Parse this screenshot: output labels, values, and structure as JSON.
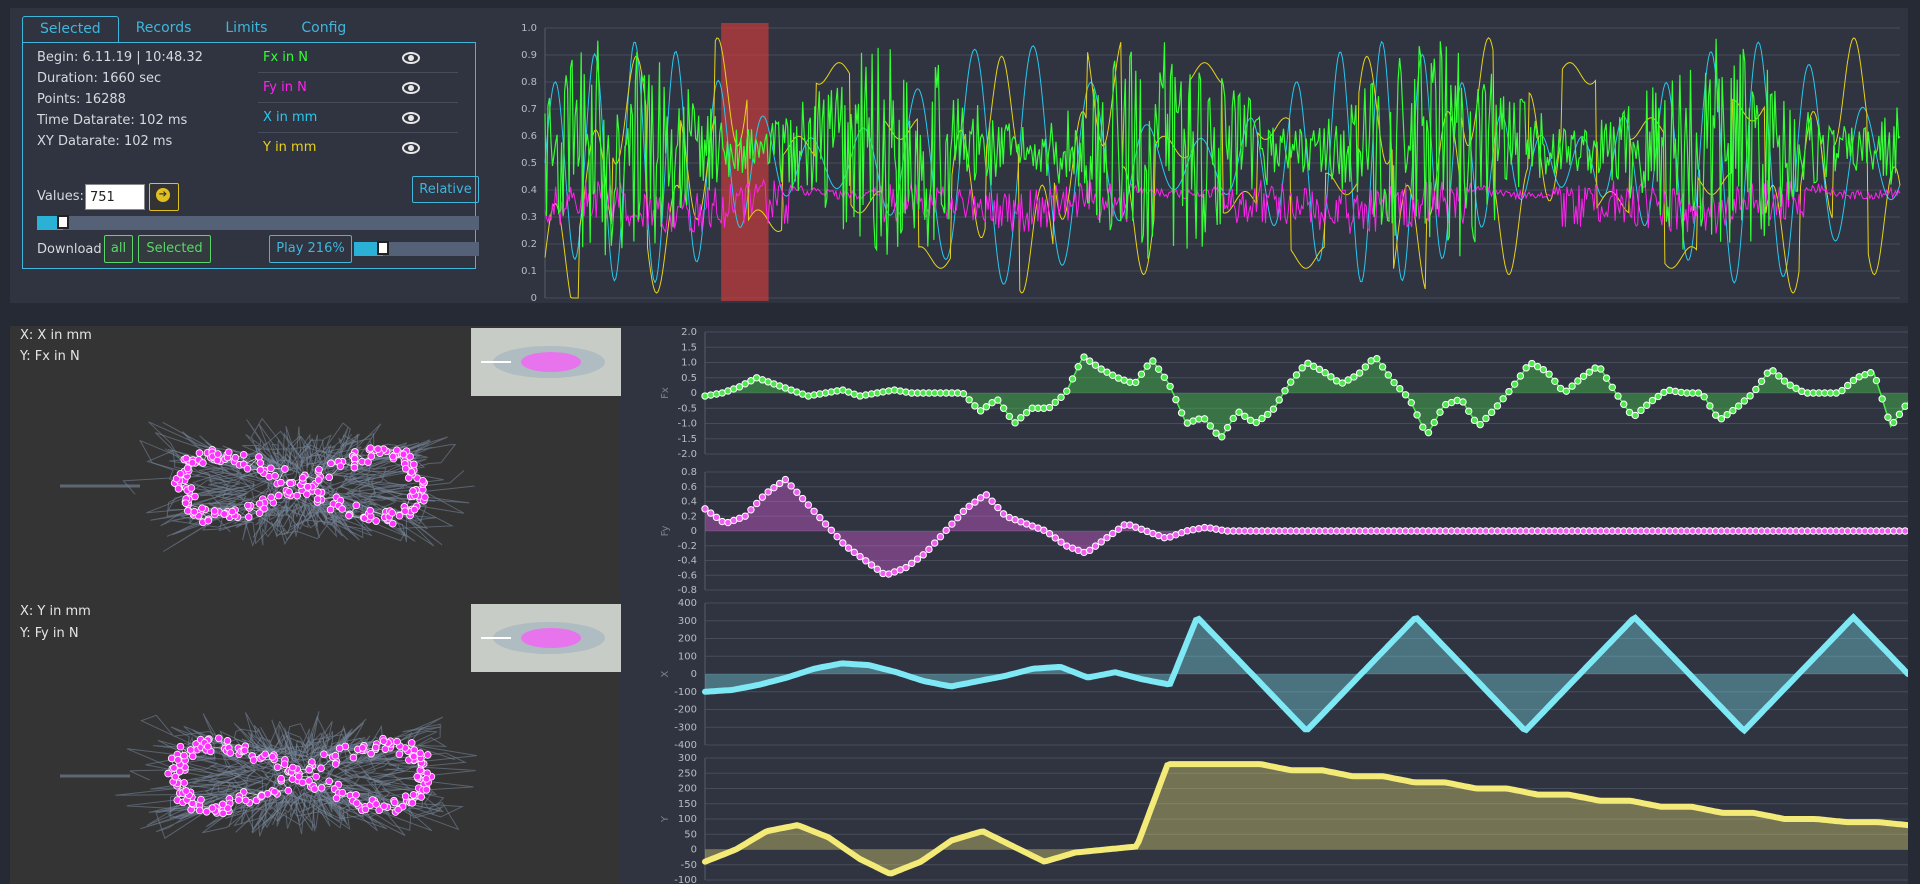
{
  "tabs": [
    "Selected",
    "Records",
    "Limits",
    "Config"
  ],
  "info": {
    "begin": "Begin: 6.11.19 | 10:48.32",
    "duration": "Duration: 1660 sec",
    "points": "Points: 16288",
    "time_datarate": "Time Datarate: 102 ms",
    "xy_datarate": "XY Datarate: 102 ms"
  },
  "series": [
    {
      "label": "Fx in N",
      "color": "#33ff33",
      "icon": "eye-icon"
    },
    {
      "label": "Fy in N",
      "color": "#ff22ee",
      "icon": "eye-icon"
    },
    {
      "label": "X in mm",
      "color": "#29c8ef",
      "icon": "eye-icon"
    },
    {
      "label": "Y in mm",
      "color": "#e8d21a",
      "icon": "eye-icon"
    }
  ],
  "controls": {
    "values_label": "Values:",
    "values_value": "751",
    "relative_label": "Relative",
    "download_label": "Download",
    "download_all": "all",
    "download_selected": "Selected",
    "play_label": "Play 216%",
    "range_slider_value": 0.04,
    "play_slider_value": 0.23
  },
  "scatter_plots": [
    {
      "x_label": "X: X in mm",
      "y_label": "Y: Fx in N"
    },
    {
      "x_label": "X: Y in mm",
      "y_label": "Y: Fy in N"
    }
  ],
  "chart_data": [
    {
      "type": "line",
      "name": "overview",
      "ylim": [
        0,
        1.0
      ],
      "yticks": [
        "0",
        "0.1",
        "0.2",
        "0.3",
        "0.4",
        "0.5",
        "0.6",
        "0.7",
        "0.8",
        "0.9",
        "1.0"
      ],
      "selection_range": [
        0.13,
        0.165
      ],
      "series": [
        {
          "name": "Fx in N",
          "color": "#33ff33"
        },
        {
          "name": "Fy in N",
          "color": "#ff22ee"
        },
        {
          "name": "X in mm",
          "color": "#29c8ef"
        },
        {
          "name": "Y in mm",
          "color": "#e8d21a"
        }
      ]
    },
    {
      "type": "area",
      "ylabel": "Fx",
      "ylim": [
        -2.0,
        2.0
      ],
      "yticks": [
        "2.0",
        "1.5",
        "1.0",
        "0.5",
        "0",
        "-0.5",
        "-1.0",
        "-1.5",
        "-2.0"
      ],
      "color": "#4ee84e",
      "values": [
        -0.1,
        0.0,
        0.2,
        0.5,
        0.3,
        0.1,
        -0.1,
        0.0,
        0.1,
        -0.1,
        0.0,
        0.1,
        0.0,
        0.0,
        0.0,
        0.0,
        -0.6,
        -0.2,
        -1.0,
        -0.5,
        -0.5,
        0.0,
        1.2,
        0.8,
        0.5,
        0.3,
        1.1,
        0.3,
        -1.0,
        -0.8,
        -1.5,
        -0.6,
        -1.0,
        -0.6,
        0.3,
        1.0,
        0.7,
        0.3,
        0.6,
        1.2,
        0.4,
        -0.2,
        -1.4,
        -0.4,
        -0.2,
        -1.1,
        -0.5,
        0.2,
        1.0,
        0.7,
        0.0,
        0.5,
        0.9,
        0.0,
        -0.8,
        -0.3,
        0.1,
        0.0,
        0.0,
        -0.9,
        -0.5,
        0.0,
        0.8,
        0.3,
        0.0,
        0.0,
        0.0,
        0.5,
        0.7,
        -1.1,
        -0.3
      ]
    },
    {
      "type": "area",
      "ylabel": "Fy",
      "ylim": [
        -0.8,
        0.8
      ],
      "yticks": [
        "0.8",
        "0.6",
        "0.4",
        "0.2",
        "0",
        "-0.2",
        "-0.4",
        "-0.6",
        "-0.8"
      ],
      "color": "#f060f0",
      "values": [
        0.3,
        0.1,
        0.2,
        0.5,
        0.7,
        0.4,
        0.1,
        -0.2,
        -0.4,
        -0.6,
        -0.5,
        -0.3,
        0.0,
        0.3,
        0.5,
        0.2,
        0.1,
        0.0,
        -0.2,
        -0.3,
        -0.1,
        0.1,
        0.0,
        -0.1,
        0.0,
        0.05,
        0.0,
        0.0,
        0.0,
        0.0,
        0.0,
        0.0,
        0.0,
        0.0,
        0.0,
        0.0,
        0.0,
        0.0,
        0.0,
        0.0,
        0.0,
        0.0,
        0.0,
        0.0,
        0.0,
        0.0,
        0.0,
        0.0,
        0.0,
        0.0,
        0.0,
        0.0,
        0.0,
        0.0,
        0.0,
        0.0,
        0.0,
        0.0,
        0.0,
        0.0,
        0.0
      ]
    },
    {
      "type": "area",
      "ylabel": "X",
      "ylim": [
        -400,
        400
      ],
      "yticks": [
        "400",
        "300",
        "200",
        "100",
        "0",
        "-100",
        "-200",
        "-300",
        "-400"
      ],
      "color": "#7ee9f5",
      "values": [
        -100,
        -90,
        -60,
        -20,
        30,
        60,
        50,
        10,
        -40,
        -70,
        -40,
        -10,
        30,
        40,
        -20,
        10,
        -30,
        -60,
        320,
        160,
        0,
        -160,
        -320,
        -160,
        0,
        160,
        320,
        160,
        0,
        -160,
        -320,
        -160,
        0,
        160,
        320,
        160,
        0,
        -160,
        -320,
        -160,
        0,
        160,
        320,
        160,
        0
      ]
    },
    {
      "type": "area",
      "ylabel": "Y",
      "ylim": [
        -100,
        300
      ],
      "yticks": [
        "300",
        "250",
        "200",
        "150",
        "100",
        "50",
        "0",
        "-50",
        "-100"
      ],
      "color": "#f4ea78",
      "values": [
        -40,
        0,
        60,
        80,
        40,
        -30,
        -80,
        -40,
        30,
        60,
        10,
        -40,
        -10,
        0,
        10,
        280,
        280,
        280,
        280,
        260,
        260,
        240,
        240,
        220,
        220,
        200,
        200,
        180,
        180,
        160,
        160,
        140,
        140,
        120,
        120,
        100,
        100,
        90,
        90,
        80
      ]
    }
  ]
}
